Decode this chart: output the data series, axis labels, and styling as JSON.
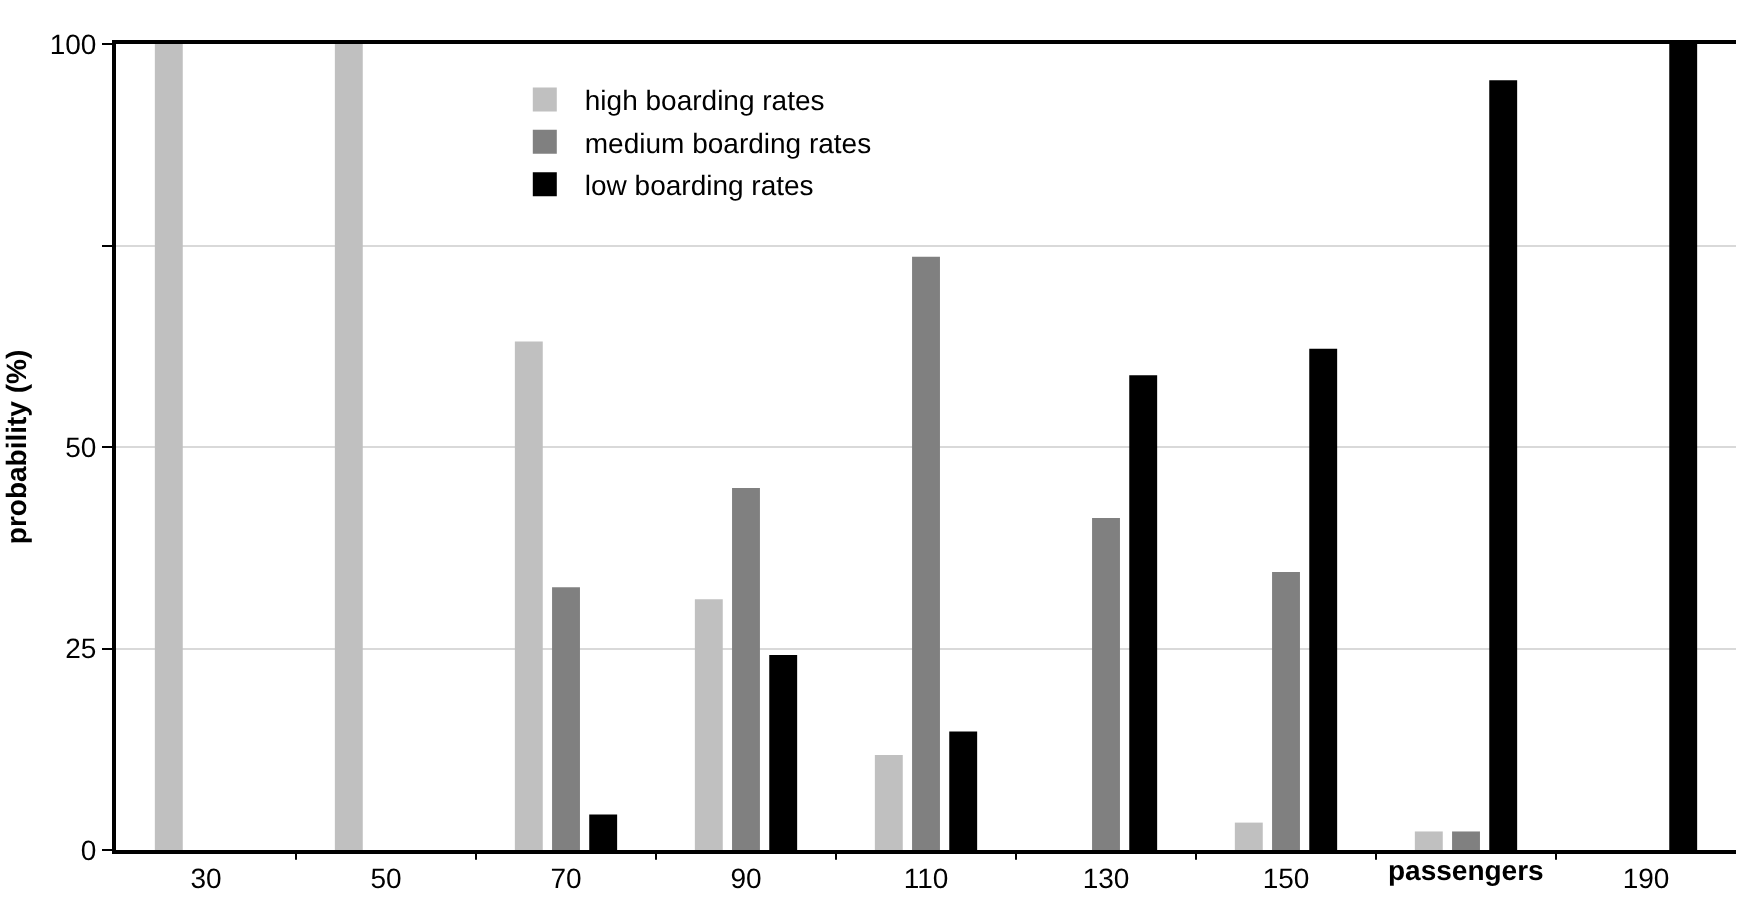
{
  "chart_data": {
    "type": "bar",
    "ylabel": "probability (%)",
    "xlabel": "passengers",
    "categories": [
      "30",
      "50",
      "70",
      "90",
      "110",
      "130",
      "150",
      null,
      "190"
    ],
    "series": [
      {
        "name": "high boarding rates",
        "color": "#c0c0c0",
        "values": [
          100,
          100,
          63.1,
          31.1,
          11.8,
          0,
          3.4,
          2.3,
          0
        ]
      },
      {
        "name": "medium boarding rates",
        "color": "#808080",
        "values": [
          0,
          0,
          32.6,
          44.9,
          73.6,
          41.2,
          34.5,
          2.3,
          0
        ]
      },
      {
        "name": "low boarding rates",
        "color": "#000000",
        "values": [
          0,
          0,
          4.4,
          24.2,
          14.7,
          58.9,
          62.2,
          95.5,
          100
        ]
      }
    ],
    "ylim": [
      0,
      100
    ],
    "yticks": [
      0,
      25,
      50,
      {
        "value": 75,
        "label": null
      },
      100
    ],
    "grid": "y",
    "legend": "top left"
  }
}
